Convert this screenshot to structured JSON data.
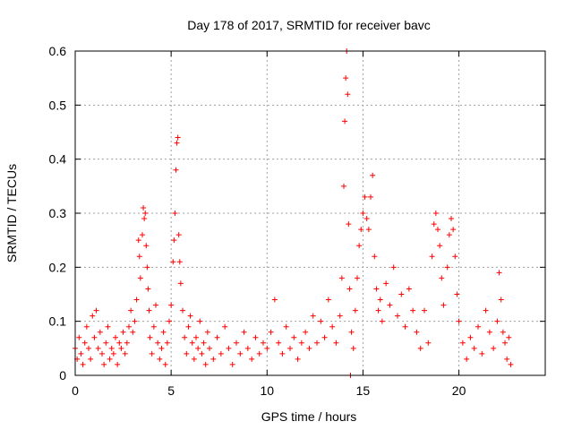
{
  "chart_data": {
    "type": "scatter",
    "title": "Day 178 of 2017, SRMTID for receiver bavc",
    "xlabel": "GPS time / hours",
    "ylabel": "SRMTID / TECUs",
    "xlim": [
      0,
      24.5
    ],
    "ylim": [
      0,
      0.6
    ],
    "xticks": [
      "0",
      "5",
      "10",
      "15",
      "20"
    ],
    "yticks": [
      "0",
      "0.1",
      "0.2",
      "0.3",
      "0.4",
      "0.5",
      "0.6"
    ],
    "grid": true,
    "marker": "+",
    "series_color": "#ff0000",
    "series": [
      {
        "name": "SRMTID",
        "points": [
          [
            0.0,
            0.05
          ],
          [
            0.1,
            0.03
          ],
          [
            0.2,
            0.07
          ],
          [
            0.3,
            0.04
          ],
          [
            0.4,
            0.02
          ],
          [
            0.5,
            0.06
          ],
          [
            0.6,
            0.09
          ],
          [
            0.7,
            0.05
          ],
          [
            0.8,
            0.03
          ],
          [
            0.9,
            0.11
          ],
          [
            1.0,
            0.07
          ],
          [
            1.1,
            0.12
          ],
          [
            1.2,
            0.05
          ],
          [
            1.3,
            0.08
          ],
          [
            1.4,
            0.04
          ],
          [
            1.5,
            0.02
          ],
          [
            1.6,
            0.06
          ],
          [
            1.7,
            0.09
          ],
          [
            1.8,
            0.03
          ],
          [
            1.9,
            0.05
          ],
          [
            2.0,
            0.04
          ],
          [
            2.1,
            0.07
          ],
          [
            2.2,
            0.02
          ],
          [
            2.3,
            0.06
          ],
          [
            2.4,
            0.05
          ],
          [
            2.5,
            0.08
          ],
          [
            2.6,
            0.04
          ],
          [
            2.7,
            0.06
          ],
          [
            2.8,
            0.09
          ],
          [
            2.9,
            0.12
          ],
          [
            3.0,
            0.08
          ],
          [
            3.1,
            0.1
          ],
          [
            3.2,
            0.14
          ],
          [
            3.3,
            0.25
          ],
          [
            3.35,
            0.22
          ],
          [
            3.4,
            0.18
          ],
          [
            3.5,
            0.26
          ],
          [
            3.55,
            0.31
          ],
          [
            3.6,
            0.29
          ],
          [
            3.65,
            0.3
          ],
          [
            3.7,
            0.24
          ],
          [
            3.75,
            0.2
          ],
          [
            3.8,
            0.16
          ],
          [
            3.85,
            0.12
          ],
          [
            3.9,
            0.07
          ],
          [
            4.0,
            0.04
          ],
          [
            4.1,
            0.09
          ],
          [
            4.2,
            0.13
          ],
          [
            4.3,
            0.06
          ],
          [
            4.4,
            0.03
          ],
          [
            4.5,
            0.05
          ],
          [
            4.6,
            0.08
          ],
          [
            4.7,
            0.02
          ],
          [
            4.8,
            0.06
          ],
          [
            4.9,
            0.1
          ],
          [
            5.0,
            0.13
          ],
          [
            5.1,
            0.21
          ],
          [
            5.15,
            0.25
          ],
          [
            5.2,
            0.3
          ],
          [
            5.25,
            0.38
          ],
          [
            5.3,
            0.43
          ],
          [
            5.35,
            0.44
          ],
          [
            5.4,
            0.26
          ],
          [
            5.45,
            0.21
          ],
          [
            5.5,
            0.17
          ],
          [
            5.6,
            0.12
          ],
          [
            5.7,
            0.07
          ],
          [
            5.8,
            0.04
          ],
          [
            5.9,
            0.09
          ],
          [
            6.0,
            0.11
          ],
          [
            6.1,
            0.06
          ],
          [
            6.2,
            0.03
          ],
          [
            6.3,
            0.07
          ],
          [
            6.4,
            0.05
          ],
          [
            6.5,
            0.1
          ],
          [
            6.6,
            0.04
          ],
          [
            6.7,
            0.06
          ],
          [
            6.8,
            0.02
          ],
          [
            6.9,
            0.08
          ],
          [
            7.0,
            0.05
          ],
          [
            7.2,
            0.03
          ],
          [
            7.4,
            0.07
          ],
          [
            7.6,
            0.04
          ],
          [
            7.8,
            0.09
          ],
          [
            8.0,
            0.05
          ],
          [
            8.2,
            0.02
          ],
          [
            8.4,
            0.06
          ],
          [
            8.6,
            0.04
          ],
          [
            8.8,
            0.08
          ],
          [
            9.0,
            0.05
          ],
          [
            9.2,
            0.03
          ],
          [
            9.4,
            0.07
          ],
          [
            9.6,
            0.04
          ],
          [
            9.8,
            0.06
          ],
          [
            10.0,
            0.05
          ],
          [
            10.2,
            0.08
          ],
          [
            10.4,
            0.14
          ],
          [
            10.6,
            0.06
          ],
          [
            10.8,
            0.04
          ],
          [
            11.0,
            0.09
          ],
          [
            11.2,
            0.05
          ],
          [
            11.4,
            0.07
          ],
          [
            11.6,
            0.03
          ],
          [
            11.8,
            0.06
          ],
          [
            12.0,
            0.08
          ],
          [
            12.2,
            0.05
          ],
          [
            12.4,
            0.11
          ],
          [
            12.6,
            0.06
          ],
          [
            12.8,
            0.1
          ],
          [
            13.0,
            0.07
          ],
          [
            13.2,
            0.14
          ],
          [
            13.4,
            0.09
          ],
          [
            13.6,
            0.06
          ],
          [
            13.8,
            0.11
          ],
          [
            13.9,
            0.18
          ],
          [
            14.0,
            0.35
          ],
          [
            14.05,
            0.47
          ],
          [
            14.1,
            0.55
          ],
          [
            14.15,
            0.6
          ],
          [
            14.2,
            0.52
          ],
          [
            14.25,
            0.28
          ],
          [
            14.3,
            0.16
          ],
          [
            14.35,
            0.0
          ],
          [
            14.4,
            0.08
          ],
          [
            14.5,
            0.05
          ],
          [
            14.6,
            0.12
          ],
          [
            14.7,
            0.18
          ],
          [
            14.8,
            0.24
          ],
          [
            14.9,
            0.27
          ],
          [
            15.0,
            0.3
          ],
          [
            15.1,
            0.33
          ],
          [
            15.2,
            0.29
          ],
          [
            15.3,
            0.27
          ],
          [
            15.4,
            0.33
          ],
          [
            15.5,
            0.37
          ],
          [
            15.6,
            0.22
          ],
          [
            15.7,
            0.16
          ],
          [
            15.8,
            0.12
          ],
          [
            15.9,
            0.14
          ],
          [
            16.0,
            0.1
          ],
          [
            16.2,
            0.17
          ],
          [
            16.4,
            0.13
          ],
          [
            16.6,
            0.2
          ],
          [
            16.8,
            0.11
          ],
          [
            17.0,
            0.15
          ],
          [
            17.2,
            0.09
          ],
          [
            17.4,
            0.16
          ],
          [
            17.6,
            0.12
          ],
          [
            17.8,
            0.08
          ],
          [
            18.0,
            0.05
          ],
          [
            18.2,
            0.12
          ],
          [
            18.4,
            0.06
          ],
          [
            18.6,
            0.22
          ],
          [
            18.7,
            0.28
          ],
          [
            18.8,
            0.3
          ],
          [
            18.9,
            0.27
          ],
          [
            19.0,
            0.24
          ],
          [
            19.1,
            0.18
          ],
          [
            19.2,
            0.13
          ],
          [
            19.4,
            0.2
          ],
          [
            19.5,
            0.26
          ],
          [
            19.6,
            0.29
          ],
          [
            19.7,
            0.27
          ],
          [
            19.8,
            0.22
          ],
          [
            19.9,
            0.15
          ],
          [
            20.0,
            0.1
          ],
          [
            20.2,
            0.06
          ],
          [
            20.4,
            0.03
          ],
          [
            20.6,
            0.07
          ],
          [
            20.8,
            0.05
          ],
          [
            21.0,
            0.09
          ],
          [
            21.2,
            0.04
          ],
          [
            21.4,
            0.12
          ],
          [
            21.6,
            0.08
          ],
          [
            21.8,
            0.05
          ],
          [
            22.0,
            0.1
          ],
          [
            22.1,
            0.19
          ],
          [
            22.2,
            0.14
          ],
          [
            22.3,
            0.08
          ],
          [
            22.4,
            0.06
          ],
          [
            22.5,
            0.03
          ],
          [
            22.6,
            0.07
          ],
          [
            22.7,
            0.02
          ]
        ]
      }
    ]
  }
}
